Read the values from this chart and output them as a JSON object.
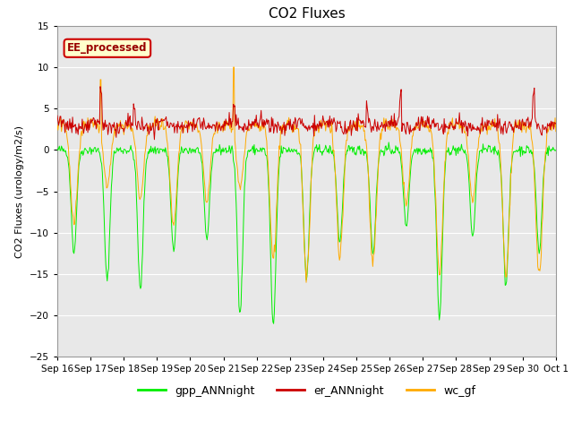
{
  "title": "CO2 Fluxes",
  "ylabel": "CO2 Fluxes (urology/m2/s)",
  "ylim": [
    -25,
    15
  ],
  "yticks": [
    -25,
    -20,
    -15,
    -10,
    -5,
    0,
    5,
    10,
    15
  ],
  "xlabels": [
    "Sep 16",
    "Sep 17",
    "Sep 18",
    "Sep 19",
    "Sep 20",
    "Sep 21",
    "Sep 22",
    "Sep 23",
    "Sep 24",
    "Sep 25",
    "Sep 26",
    "Sep 27",
    "Sep 28",
    "Sep 29",
    "Sep 30",
    "Oct 1"
  ],
  "legend_box_label": "EE_processed",
  "legend_items": [
    "gpp_ANNnight",
    "er_ANNnight",
    "wc_gf"
  ],
  "legend_colors": [
    "#00ee00",
    "#cc0000",
    "#ffaa00"
  ],
  "bg_color": "#e8e8e8",
  "line_colors": [
    "#00ee00",
    "#cc0000",
    "#ffaa00"
  ],
  "n_days": 15,
  "pts_per_day": 48
}
